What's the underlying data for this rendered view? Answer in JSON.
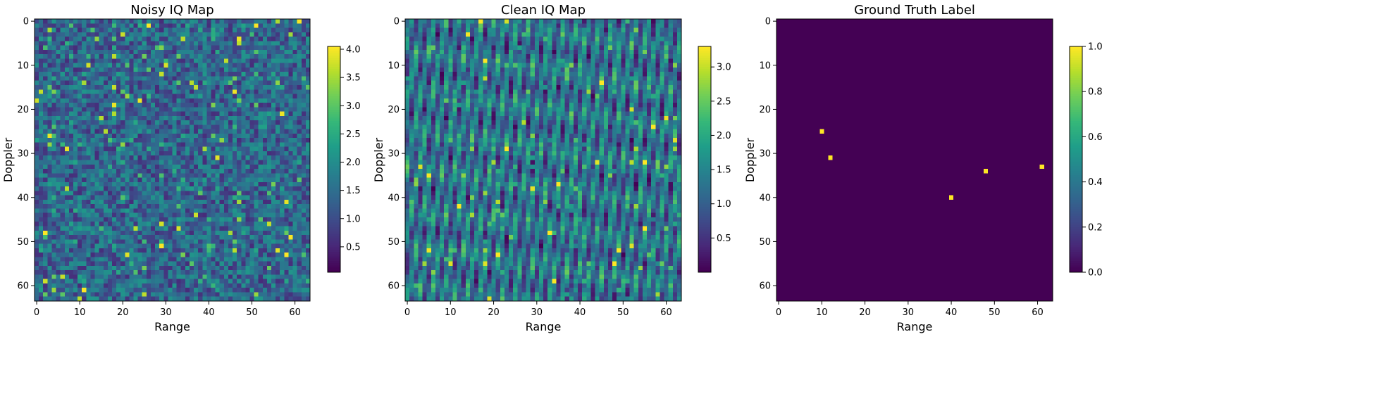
{
  "chart_data": [
    {
      "type": "heatmap",
      "title": "Noisy IQ Map",
      "xlabel": "Range",
      "ylabel": "Doppler",
      "shape": [
        64,
        64
      ],
      "xlim": [
        -0.5,
        63.5
      ],
      "ylim": [
        63.5,
        -0.5
      ],
      "x_ticks": [
        "0",
        "10",
        "20",
        "30",
        "40",
        "50",
        "60"
      ],
      "y_ticks": [
        "0",
        "10",
        "20",
        "30",
        "40",
        "50",
        "60"
      ],
      "colormap": "viridis",
      "value_range": [
        0.05,
        4.05
      ],
      "colorbar_ticks": [
        "0.5",
        "1.0",
        "1.5",
        "2.0",
        "2.5",
        "3.0",
        "3.5",
        "4.0"
      ],
      "pattern": "random noise"
    },
    {
      "type": "heatmap",
      "title": "Clean IQ Map",
      "xlabel": "Range",
      "ylabel": "Doppler",
      "shape": [
        64,
        64
      ],
      "xlim": [
        -0.5,
        63.5
      ],
      "ylim": [
        63.5,
        -0.5
      ],
      "x_ticks": [
        "0",
        "10",
        "20",
        "30",
        "40",
        "50",
        "60"
      ],
      "y_ticks": [
        "0",
        "10",
        "20",
        "30",
        "40",
        "50",
        "60"
      ],
      "colormap": "viridis",
      "value_range": [
        0.0,
        3.3
      ],
      "colorbar_ticks": [
        "0.5",
        "1.0",
        "1.5",
        "2.0",
        "2.5",
        "3.0"
      ],
      "pattern": "diagonal interference stripes"
    },
    {
      "type": "heatmap",
      "title": "Ground Truth Label",
      "xlabel": "Range",
      "ylabel": "Doppler",
      "shape": [
        64,
        64
      ],
      "xlim": [
        -0.5,
        63.5
      ],
      "ylim": [
        63.5,
        -0.5
      ],
      "x_ticks": [
        "0",
        "10",
        "20",
        "30",
        "40",
        "50",
        "60"
      ],
      "y_ticks": [
        "0",
        "10",
        "20",
        "30",
        "40",
        "50",
        "60"
      ],
      "colormap": "viridis",
      "value_range": [
        0.0,
        1.0
      ],
      "colorbar_ticks": [
        "0.0",
        "0.2",
        "0.4",
        "0.6",
        "0.8",
        "1.0"
      ],
      "background_value": 0,
      "targets": [
        {
          "range": 10,
          "doppler": 25,
          "value": 1
        },
        {
          "range": 12,
          "doppler": 31,
          "value": 1
        },
        {
          "range": 40,
          "doppler": 40,
          "value": 1
        },
        {
          "range": 48,
          "doppler": 34,
          "value": 1
        },
        {
          "range": 61,
          "doppler": 33,
          "value": 1
        }
      ]
    }
  ]
}
